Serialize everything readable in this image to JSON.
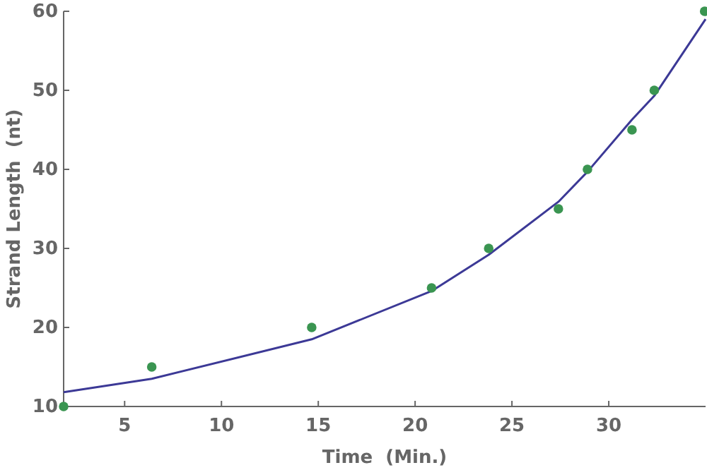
{
  "chart_data": {
    "type": "scatter",
    "xlabel": "Time  (Min.)",
    "ylabel": "Strand Length  (nt)",
    "xlim": [
      1.85,
      35
    ],
    "ylim": [
      10,
      60
    ],
    "xticks": [
      5,
      10,
      15,
      20,
      25,
      30
    ],
    "yticks": [
      10,
      20,
      30,
      40,
      50,
      60
    ],
    "grid": false,
    "marker": "circle",
    "series": [
      {
        "color": "#3a9551",
        "x": [
          1.85,
          6.4,
          14.66,
          20.85,
          23.8,
          27.4,
          28.9,
          31.2,
          32.35,
          34.95
        ],
        "values": [
          10,
          15,
          20,
          25,
          30,
          35,
          40,
          45,
          50,
          60
        ]
      },
      {
        "type": "line",
        "color": "#3c3996",
        "marker": "none",
        "x": [
          1.85,
          6.4,
          14.66,
          20.85,
          23.8,
          27.4,
          28.9,
          31.2,
          32.35,
          35
        ],
        "values": [
          11.8,
          13.5,
          18.5,
          24.6,
          29.2,
          35.9,
          39.7,
          46.3,
          49.3,
          59.0
        ]
      }
    ]
  }
}
